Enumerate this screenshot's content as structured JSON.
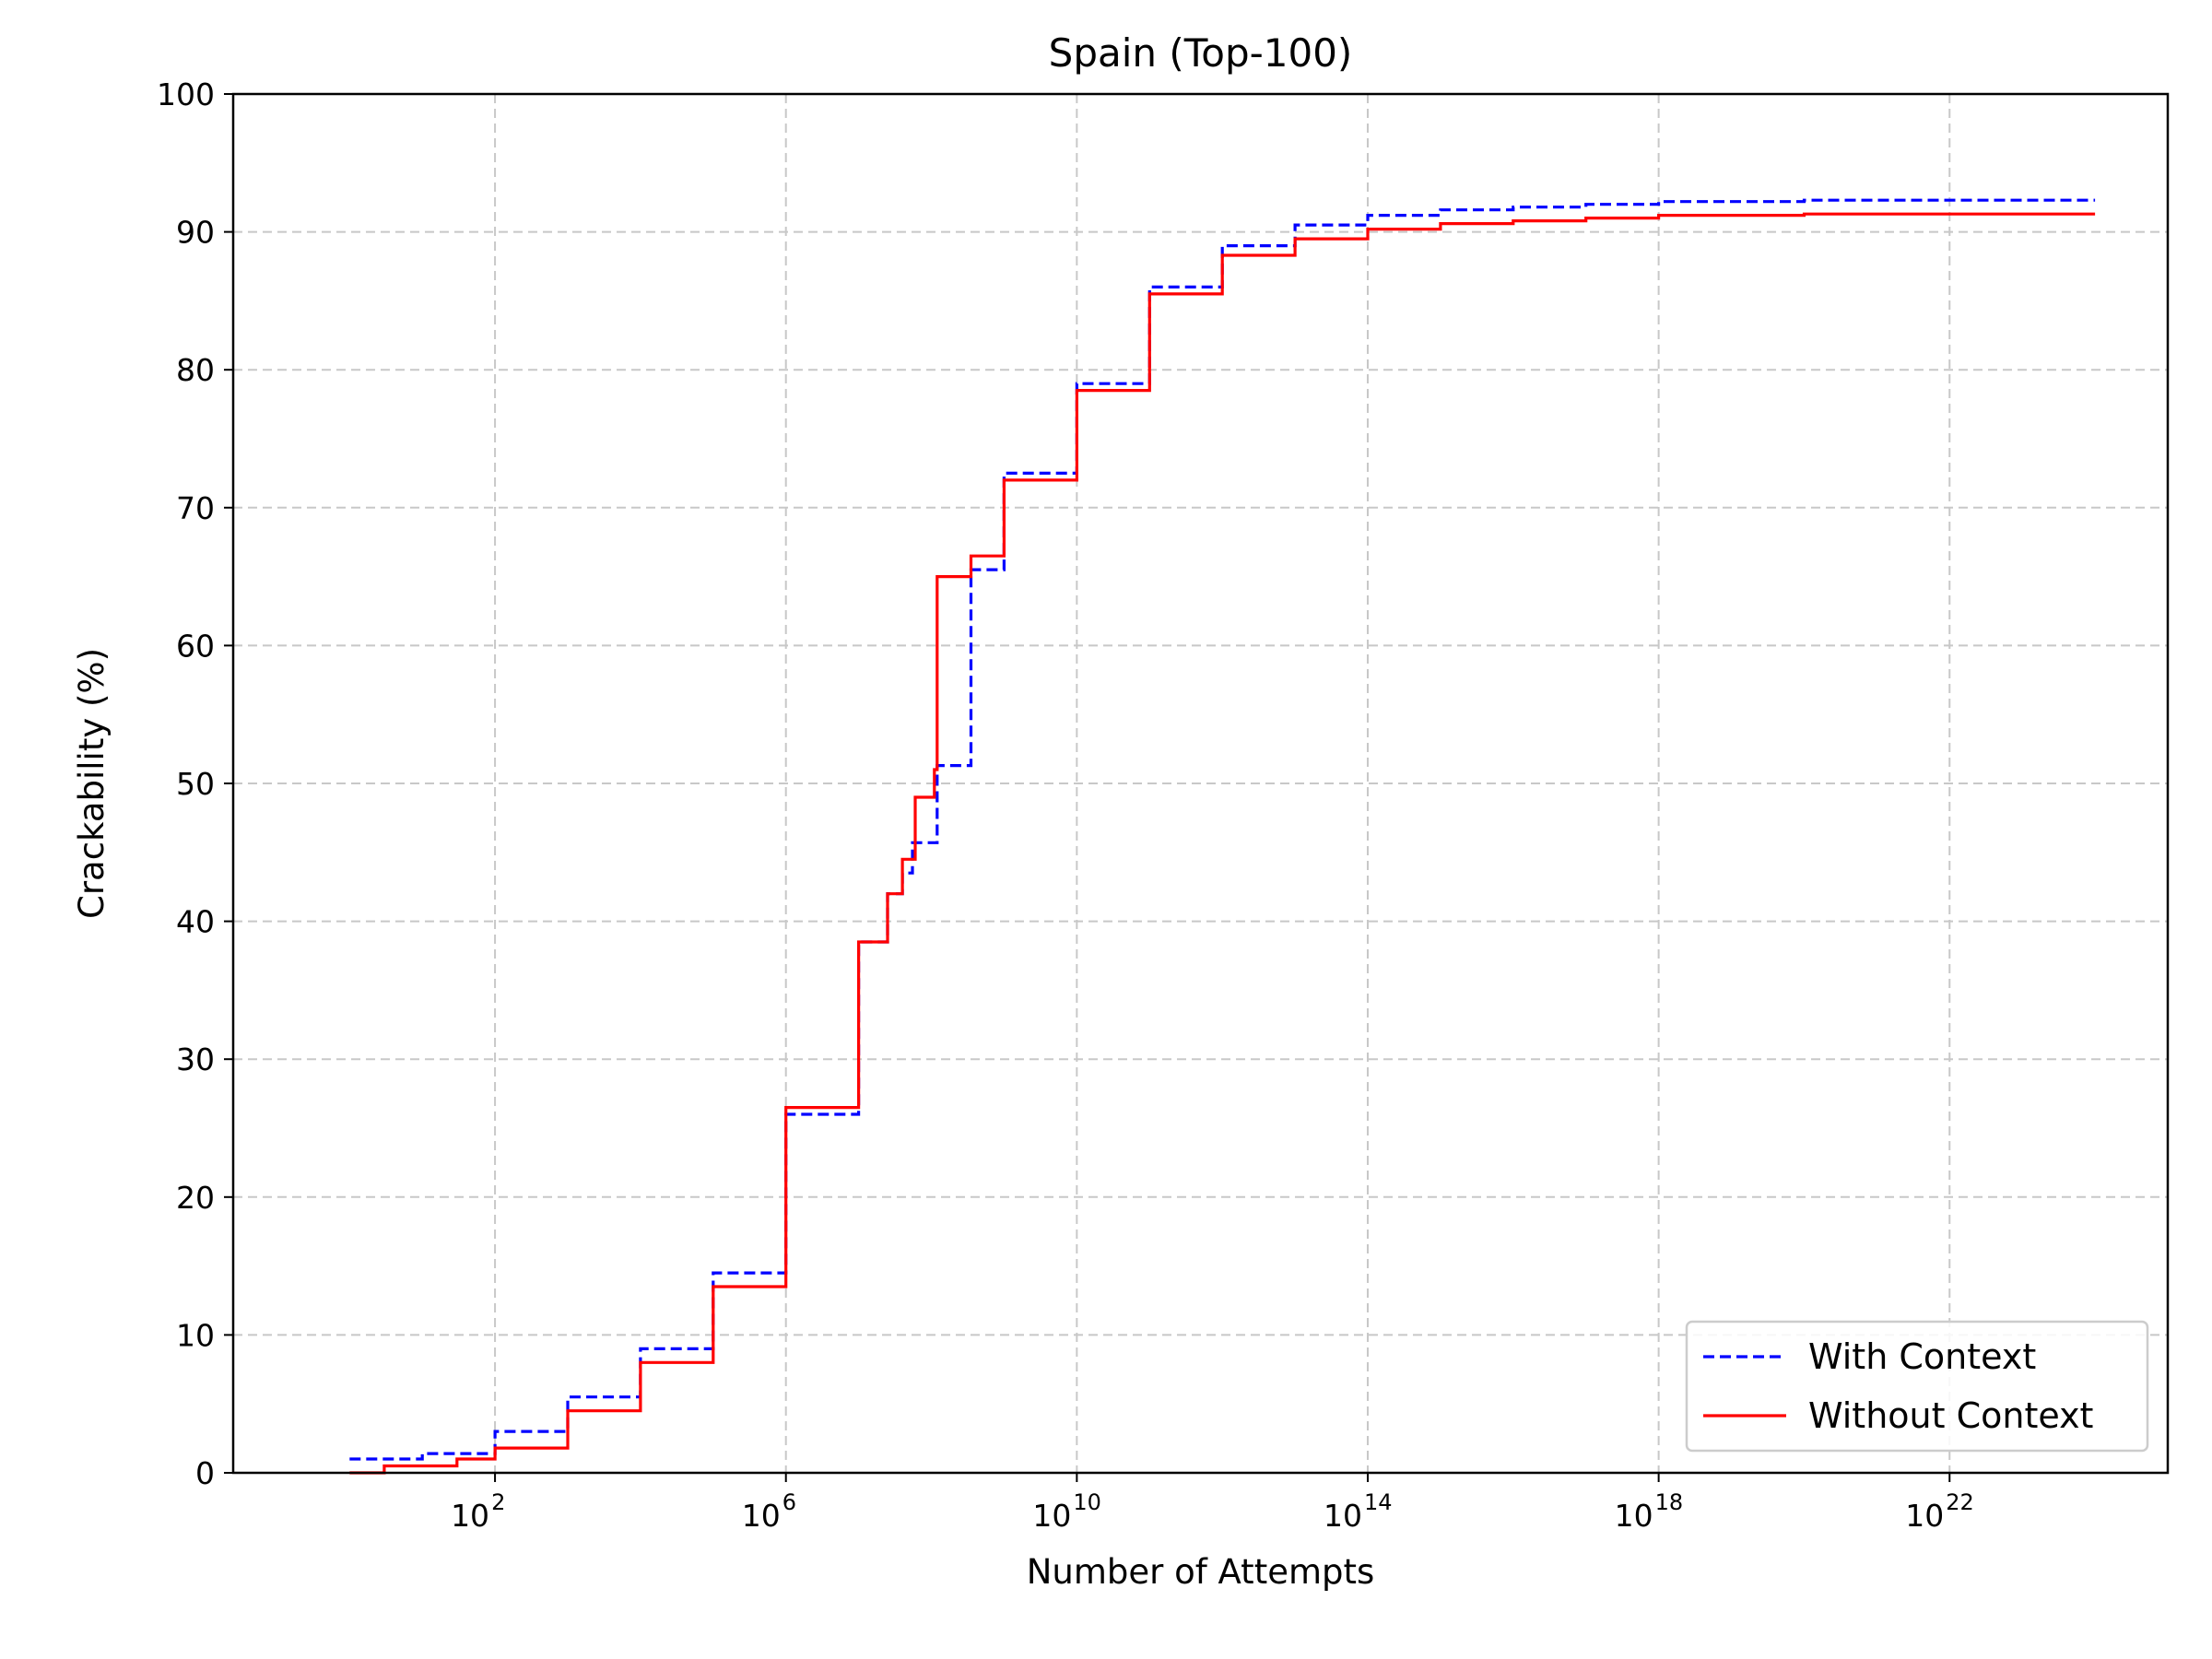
{
  "chart_data": {
    "type": "line",
    "title": "Spain (Top-100)",
    "xlabel": "Number of Attempts",
    "ylabel": "Crackability (%)",
    "xscale": "log",
    "xlim_log10": [
      -1.6,
      25.0
    ],
    "ylim": [
      0,
      100
    ],
    "x_ticks": [
      {
        "base": "10",
        "exp": "2"
      },
      {
        "base": "10",
        "exp": "6"
      },
      {
        "base": "10",
        "exp": "10"
      },
      {
        "base": "10",
        "exp": "14"
      },
      {
        "base": "10",
        "exp": "18"
      },
      {
        "base": "10",
        "exp": "22"
      }
    ],
    "y_ticks": [
      "0",
      "10",
      "20",
      "30",
      "40",
      "50",
      "60",
      "70",
      "80",
      "90",
      "100"
    ],
    "grid": true,
    "legend_position": "bottom-right",
    "series": [
      {
        "name": "With Context",
        "color": "#0000ff",
        "style": "dashed",
        "points": [
          [
            1,
            1.0
          ],
          [
            10,
            1.4
          ],
          [
            100,
            3.0
          ],
          [
            1000.0,
            5.5
          ],
          [
            10000.0,
            9.0
          ],
          [
            100000.0,
            14.5
          ],
          [
            1000000.0,
            26.0
          ],
          [
            10000000.0,
            38.5
          ],
          [
            25000000.0,
            42.0
          ],
          [
            40000000.0,
            43.5
          ],
          [
            55000000.0,
            45.7
          ],
          [
            100000000.0,
            45.7
          ],
          [
            120000000.0,
            51.3
          ],
          [
            320000000.0,
            51.3
          ],
          [
            350000000.0,
            65.5
          ],
          [
            1000000000.0,
            72.5
          ],
          [
            10000000000.0,
            79.0
          ],
          [
            100000000000.0,
            86.0
          ],
          [
            1000000000000.0,
            89.0
          ],
          [
            10000000000000.0,
            90.5
          ],
          [
            100000000000000.0,
            91.2
          ],
          [
            1000000000000000.0,
            91.6
          ],
          [
            1e+16,
            91.8
          ],
          [
            1e+17,
            92.0
          ],
          [
            1e+18,
            92.2
          ],
          [
            1e+20,
            92.3
          ],
          [
            1e+24,
            92.3
          ]
        ]
      },
      {
        "name": "Without Context",
        "color": "#ff0000",
        "style": "solid",
        "points": [
          [
            1,
            0.0
          ],
          [
            2.5,
            0.0
          ],
          [
            3,
            0.5
          ],
          [
            20,
            0.5
          ],
          [
            30,
            1.0
          ],
          [
            100,
            1.8
          ],
          [
            1000.0,
            4.5
          ],
          [
            10000.0,
            8.0
          ],
          [
            100000.0,
            13.5
          ],
          [
            1000000.0,
            26.5
          ],
          [
            10000000.0,
            38.5
          ],
          [
            25000000.0,
            42.0
          ],
          [
            40000000.0,
            44.5
          ],
          [
            60000000.0,
            49.0
          ],
          [
            90000000.0,
            49.0
          ],
          [
            110000000.0,
            51.0
          ],
          [
            120000000.0,
            65.0
          ],
          [
            300000000.0,
            65.0
          ],
          [
            350000000.0,
            66.5
          ],
          [
            1000000000.0,
            72.0
          ],
          [
            10000000000.0,
            78.5
          ],
          [
            100000000000.0,
            85.5
          ],
          [
            1000000000000.0,
            88.3
          ],
          [
            10000000000000.0,
            89.5
          ],
          [
            100000000000000.0,
            90.2
          ],
          [
            1000000000000000.0,
            90.6
          ],
          [
            1e+16,
            90.8
          ],
          [
            1e+17,
            91.0
          ],
          [
            1e+18,
            91.2
          ],
          [
            1e+20,
            91.3
          ],
          [
            1e+24,
            91.3
          ]
        ]
      }
    ]
  }
}
